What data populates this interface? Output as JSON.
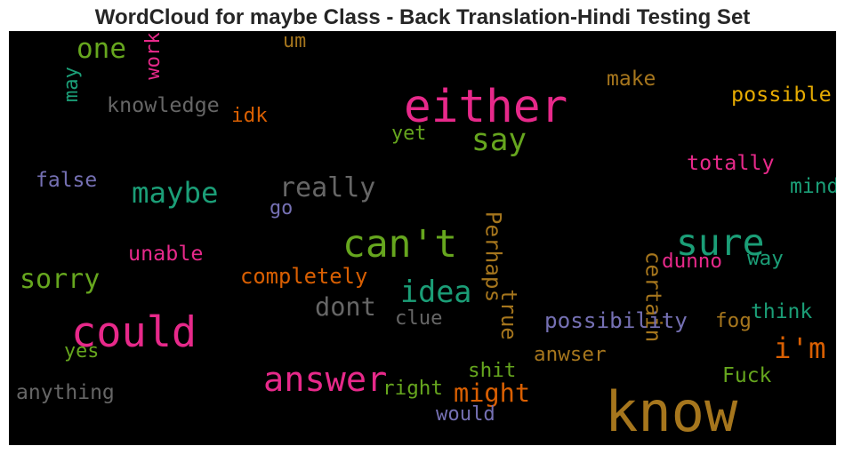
{
  "chart_data": {
    "type": "wordcloud",
    "title": "WordCloud for maybe Class - Back Translation-Hindi Testing Set",
    "background": "#000000",
    "words": [
      {
        "text": "know",
        "weight": 1.0,
        "color": "#a6761d",
        "vertical": false
      },
      {
        "text": "either",
        "weight": 0.82,
        "color": "#e7298a",
        "vertical": false
      },
      {
        "text": "could",
        "weight": 0.75,
        "color": "#e7298a",
        "vertical": false
      },
      {
        "text": "can't",
        "weight": 0.68,
        "color": "#66a61e",
        "vertical": false
      },
      {
        "text": "sure",
        "weight": 0.65,
        "color": "#1b9e77",
        "vertical": false
      },
      {
        "text": "answer",
        "weight": 0.6,
        "color": "#e7298a",
        "vertical": false
      },
      {
        "text": "say",
        "weight": 0.52,
        "color": "#66a61e",
        "vertical": false
      },
      {
        "text": "idea",
        "weight": 0.5,
        "color": "#1b9e77",
        "vertical": false
      },
      {
        "text": "maybe",
        "weight": 0.48,
        "color": "#1b9e77",
        "vertical": false
      },
      {
        "text": "i'm",
        "weight": 0.48,
        "color": "#d95f02",
        "vertical": false
      },
      {
        "text": "one",
        "weight": 0.45,
        "color": "#66a61e",
        "vertical": false
      },
      {
        "text": "really",
        "weight": 0.43,
        "color": "#666666",
        "vertical": false
      },
      {
        "text": "sorry",
        "weight": 0.43,
        "color": "#66a61e",
        "vertical": false
      },
      {
        "text": "dont",
        "weight": 0.4,
        "color": "#666666",
        "vertical": false
      },
      {
        "text": "might",
        "weight": 0.4,
        "color": "#d95f02",
        "vertical": false
      },
      {
        "text": "Perhaps",
        "weight": 0.3,
        "color": "#a6761d",
        "vertical": true
      },
      {
        "text": "certain",
        "weight": 0.3,
        "color": "#a6761d",
        "vertical": true
      },
      {
        "text": "possibility",
        "weight": 0.3,
        "color": "#7570b3",
        "vertical": false
      },
      {
        "text": "completely",
        "weight": 0.29,
        "color": "#d95f02",
        "vertical": false
      },
      {
        "text": "true",
        "weight": 0.29,
        "color": "#a6761d",
        "vertical": true
      },
      {
        "text": "knowledge",
        "weight": 0.28,
        "color": "#666666",
        "vertical": false
      },
      {
        "text": "possible",
        "weight": 0.28,
        "color": "#e6ab02",
        "vertical": false
      },
      {
        "text": "totally",
        "weight": 0.28,
        "color": "#e7298a",
        "vertical": false
      },
      {
        "text": "unable",
        "weight": 0.28,
        "color": "#e7298a",
        "vertical": false
      },
      {
        "text": "false",
        "weight": 0.27,
        "color": "#7570b3",
        "vertical": false
      },
      {
        "text": "make",
        "weight": 0.27,
        "color": "#a6761d",
        "vertical": false
      },
      {
        "text": "mind",
        "weight": 0.27,
        "color": "#1b9e77",
        "vertical": false
      },
      {
        "text": "think",
        "weight": 0.27,
        "color": "#1b9e77",
        "vertical": false
      },
      {
        "text": "anything",
        "weight": 0.27,
        "color": "#666666",
        "vertical": false
      },
      {
        "text": "Fuck",
        "weight": 0.27,
        "color": "#66a61e",
        "vertical": false
      },
      {
        "text": "anwser",
        "weight": 0.26,
        "color": "#a6761d",
        "vertical": false
      },
      {
        "text": "dunno",
        "weight": 0.26,
        "color": "#e7298a",
        "vertical": false
      },
      {
        "text": "shit",
        "weight": 0.26,
        "color": "#66a61e",
        "vertical": false
      },
      {
        "text": "right",
        "weight": 0.26,
        "color": "#66a61e",
        "vertical": false
      },
      {
        "text": "fog",
        "weight": 0.26,
        "color": "#a6761d",
        "vertical": false
      },
      {
        "text": "way",
        "weight": 0.26,
        "color": "#1b9e77",
        "vertical": false
      },
      {
        "text": "idk",
        "weight": 0.26,
        "color": "#d95f02",
        "vertical": false
      },
      {
        "text": "work",
        "weight": 0.25,
        "color": "#e7298a",
        "vertical": true
      },
      {
        "text": "may",
        "weight": 0.25,
        "color": "#1b9e77",
        "vertical": true
      },
      {
        "text": "clue",
        "weight": 0.25,
        "color": "#666666",
        "vertical": false
      },
      {
        "text": "would",
        "weight": 0.25,
        "color": "#7570b3",
        "vertical": false
      },
      {
        "text": "yet",
        "weight": 0.24,
        "color": "#66a61e",
        "vertical": false
      },
      {
        "text": "go",
        "weight": 0.24,
        "color": "#7570b3",
        "vertical": false
      },
      {
        "text": "um",
        "weight": 0.24,
        "color": "#a6761d",
        "vertical": false
      },
      {
        "text": "yes",
        "weight": 0.24,
        "color": "#66a61e",
        "vertical": false
      }
    ]
  }
}
